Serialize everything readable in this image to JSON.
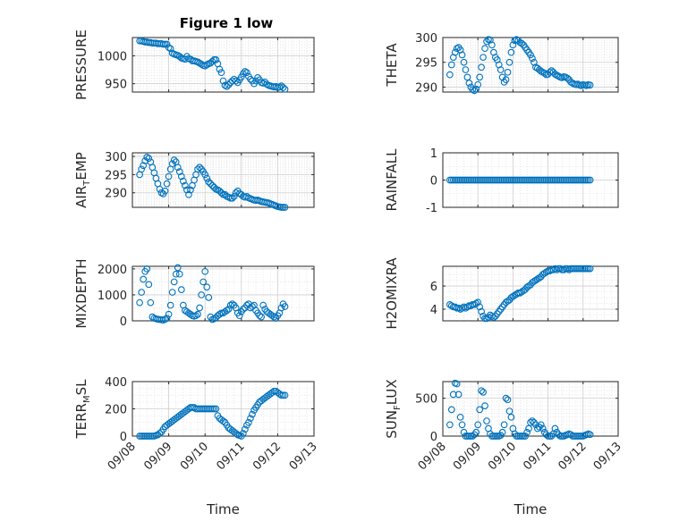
{
  "figure": {
    "title": "Figure 1 low",
    "marker_color": "#0072BD",
    "grid_color": "#d9d9d9",
    "xlabel": "Time",
    "x_tick_labels": [
      "09/08",
      "09/09",
      "09/10",
      "09/11",
      "09/12",
      "09/13"
    ]
  },
  "chart_data": [
    {
      "type": "scatter",
      "ylabel": "PRESSURE",
      "title": "Figure 1 low",
      "xlim": [
        0,
        5
      ],
      "ylim": [
        935,
        1033
      ],
      "yticks": [
        950,
        1000
      ],
      "grid": true,
      "x": [
        0.2,
        0.25,
        0.3,
        0.35,
        0.4,
        0.45,
        0.5,
        0.55,
        0.6,
        0.65,
        0.7,
        0.75,
        0.8,
        0.85,
        0.9,
        0.95,
        1.0,
        1.05,
        1.1,
        1.15,
        1.2,
        1.25,
        1.3,
        1.35,
        1.4,
        1.45,
        1.5,
        1.55,
        1.6,
        1.65,
        1.7,
        1.75,
        1.8,
        1.85,
        1.9,
        1.95,
        2.0,
        2.05,
        2.1,
        2.15,
        2.2,
        2.25,
        2.3,
        2.35,
        2.4,
        2.45,
        2.5,
        2.55,
        2.6,
        2.65,
        2.7,
        2.75,
        2.8,
        2.85,
        2.9,
        2.95,
        3.0,
        3.05,
        3.1,
        3.15,
        3.2,
        3.25,
        3.3,
        3.35,
        3.4,
        3.45,
        3.5,
        3.55,
        3.6,
        3.65,
        3.7,
        3.75,
        3.8,
        3.85,
        3.9,
        3.95,
        4.0,
        4.05,
        4.1,
        4.15,
        4.2
      ],
      "y": [
        1027,
        1027,
        1026,
        1025,
        1025,
        1024,
        1024,
        1023,
        1023,
        1023,
        1022,
        1022,
        1022,
        1021,
        1021,
        1021,
        1015,
        1013,
        1005,
        1003,
        1002,
        1001,
        999,
        996,
        995,
        994,
        999,
        995,
        994,
        991,
        991,
        990,
        989,
        987,
        985,
        983,
        982,
        984,
        986,
        987,
        990,
        993,
        993,
        986,
        976,
        970,
        955,
        947,
        945,
        948,
        952,
        955,
        958,
        955,
        952,
        957,
        962,
        968,
        972,
        970,
        963,
        958,
        955,
        950,
        955,
        961,
        957,
        952,
        951,
        953,
        949,
        947,
        946,
        945,
        944,
        945,
        943,
        944,
        946,
        943,
        940
      ]
    },
    {
      "type": "scatter",
      "ylabel": "THETA",
      "xlim": [
        0,
        5
      ],
      "ylim": [
        289,
        300
      ],
      "yticks": [
        290,
        295,
        300
      ],
      "grid": true,
      "x": [
        0.2,
        0.25,
        0.3,
        0.35,
        0.4,
        0.45,
        0.5,
        0.55,
        0.6,
        0.65,
        0.7,
        0.75,
        0.8,
        0.85,
        0.9,
        0.95,
        1.0,
        1.05,
        1.1,
        1.15,
        1.2,
        1.25,
        1.3,
        1.35,
        1.4,
        1.45,
        1.5,
        1.55,
        1.6,
        1.65,
        1.7,
        1.75,
        1.8,
        1.85,
        1.9,
        1.95,
        2.0,
        2.05,
        2.1,
        2.15,
        2.2,
        2.25,
        2.3,
        2.35,
        2.4,
        2.45,
        2.5,
        2.55,
        2.6,
        2.65,
        2.7,
        2.75,
        2.8,
        2.85,
        2.9,
        2.95,
        3.0,
        3.05,
        3.1,
        3.15,
        3.2,
        3.25,
        3.3,
        3.35,
        3.4,
        3.45,
        3.5,
        3.55,
        3.6,
        3.65,
        3.7,
        3.75,
        3.8,
        3.85,
        3.9,
        3.95,
        4.0,
        4.05,
        4.1,
        4.15,
        4.2
      ],
      "y": [
        292.5,
        294.5,
        296.0,
        297.0,
        297.8,
        298.0,
        297.5,
        296.5,
        295.0,
        293.5,
        292.0,
        290.8,
        290.0,
        289.5,
        289.3,
        289.6,
        290.5,
        292.0,
        294.0,
        296.0,
        297.8,
        299.2,
        299.6,
        299.5,
        298.5,
        297.0,
        296.0,
        295.5,
        294.5,
        293.5,
        292.0,
        291.0,
        291.5,
        293.0,
        295.0,
        297.0,
        298.5,
        299.4,
        299.6,
        299.4,
        299.0,
        298.8,
        298.5,
        298.0,
        297.5,
        297.0,
        296.5,
        295.8,
        295.0,
        294.0,
        293.8,
        293.5,
        293.2,
        293.0,
        292.8,
        292.5,
        292.6,
        293.0,
        293.3,
        293.0,
        292.6,
        292.4,
        292.2,
        292.0,
        291.9,
        292.1,
        292.0,
        291.8,
        291.5,
        291.0,
        290.8,
        290.6,
        290.5,
        290.6,
        290.4,
        290.3,
        290.5,
        290.4,
        290.3,
        290.5,
        290.4
      ]
    },
    {
      "type": "scatter",
      "ylabel": "AIR_TEMP",
      "xlim": [
        0,
        5
      ],
      "ylim": [
        286,
        301
      ],
      "yticks": [
        290,
        295,
        300
      ],
      "grid": true,
      "x": [
        0.2,
        0.25,
        0.3,
        0.35,
        0.4,
        0.45,
        0.5,
        0.55,
        0.6,
        0.65,
        0.7,
        0.75,
        0.8,
        0.85,
        0.9,
        0.95,
        1.0,
        1.05,
        1.1,
        1.15,
        1.2,
        1.25,
        1.3,
        1.35,
        1.4,
        1.45,
        1.5,
        1.55,
        1.6,
        1.65,
        1.7,
        1.75,
        1.8,
        1.85,
        1.9,
        1.95,
        2.0,
        2.05,
        2.1,
        2.15,
        2.2,
        2.25,
        2.3,
        2.35,
        2.4,
        2.45,
        2.5,
        2.55,
        2.6,
        2.65,
        2.7,
        2.75,
        2.8,
        2.85,
        2.9,
        2.95,
        3.0,
        3.05,
        3.1,
        3.15,
        3.2,
        3.25,
        3.3,
        3.35,
        3.4,
        3.45,
        3.5,
        3.55,
        3.6,
        3.65,
        3.7,
        3.75,
        3.8,
        3.85,
        3.9,
        3.95,
        4.0,
        4.05,
        4.1,
        4.15,
        4.2
      ],
      "y": [
        295.0,
        296.5,
        297.5,
        298.8,
        299.8,
        299.5,
        298.5,
        297.0,
        295.5,
        294.0,
        292.5,
        291.0,
        290.0,
        289.7,
        290.5,
        292.5,
        294.5,
        296.5,
        298.0,
        299.0,
        298.5,
        297.0,
        295.8,
        294.5,
        293.2,
        292.0,
        290.8,
        289.5,
        290.8,
        292.0,
        293.5,
        295.0,
        296.5,
        297.0,
        296.5,
        295.8,
        295.0,
        294.0,
        293.0,
        292.5,
        292.0,
        291.5,
        291.0,
        290.8,
        290.5,
        290.0,
        289.5,
        289.5,
        289.0,
        288.8,
        288.5,
        288.5,
        289.0,
        290.0,
        290.5,
        289.8,
        289.5,
        289.0,
        288.8,
        289.0,
        288.6,
        288.4,
        288.2,
        288.0,
        287.9,
        288.0,
        287.8,
        287.6,
        287.5,
        287.4,
        287.3,
        287.2,
        287.0,
        286.8,
        286.6,
        286.4,
        286.2,
        286.1,
        286.0,
        286.0,
        286.0
      ]
    },
    {
      "type": "scatter",
      "ylabel": "RAINFALL",
      "xlim": [
        0,
        5
      ],
      "ylim": [
        -1,
        1
      ],
      "yticks": [
        -1,
        0,
        1
      ],
      "grid": true,
      "x": [
        0.2,
        0.25,
        0.3,
        0.35,
        0.4,
        0.45,
        0.5,
        0.55,
        0.6,
        0.65,
        0.7,
        0.75,
        0.8,
        0.85,
        0.9,
        0.95,
        1.0,
        1.05,
        1.1,
        1.15,
        1.2,
        1.25,
        1.3,
        1.35,
        1.4,
        1.45,
        1.5,
        1.55,
        1.6,
        1.65,
        1.7,
        1.75,
        1.8,
        1.85,
        1.9,
        1.95,
        2.0,
        2.05,
        2.1,
        2.15,
        2.2,
        2.25,
        2.3,
        2.35,
        2.4,
        2.45,
        2.5,
        2.55,
        2.6,
        2.65,
        2.7,
        2.75,
        2.8,
        2.85,
        2.9,
        2.95,
        3.0,
        3.05,
        3.1,
        3.15,
        3.2,
        3.25,
        3.3,
        3.35,
        3.4,
        3.45,
        3.5,
        3.55,
        3.6,
        3.65,
        3.7,
        3.75,
        3.8,
        3.85,
        3.9,
        3.95,
        4.0,
        4.05,
        4.1,
        4.15,
        4.2
      ],
      "y": [
        0,
        0,
        0,
        0,
        0,
        0,
        0,
        0,
        0,
        0,
        0,
        0,
        0,
        0,
        0,
        0,
        0,
        0,
        0,
        0,
        0,
        0,
        0,
        0,
        0,
        0,
        0,
        0,
        0,
        0,
        0,
        0,
        0,
        0,
        0,
        0,
        0,
        0,
        0,
        0,
        0,
        0,
        0,
        0,
        0,
        0,
        0,
        0,
        0,
        0,
        0,
        0,
        0,
        0,
        0,
        0,
        0,
        0,
        0,
        0,
        0,
        0,
        0,
        0,
        0,
        0,
        0,
        0,
        0,
        0,
        0,
        0,
        0,
        0,
        0,
        0,
        0,
        0,
        0,
        0,
        0
      ]
    },
    {
      "type": "scatter",
      "ylabel": "MIXDEPTH",
      "xlim": [
        0,
        5
      ],
      "ylim": [
        0,
        2100
      ],
      "yticks": [
        0,
        1000,
        2000
      ],
      "grid": true,
      "x": [
        0.2,
        0.25,
        0.3,
        0.35,
        0.4,
        0.45,
        0.5,
        0.55,
        0.6,
        0.65,
        0.7,
        0.75,
        0.8,
        0.85,
        0.9,
        0.95,
        1.0,
        1.05,
        1.1,
        1.15,
        1.2,
        1.25,
        1.3,
        1.35,
        1.4,
        1.45,
        1.5,
        1.55,
        1.6,
        1.65,
        1.7,
        1.75,
        1.8,
        1.85,
        1.9,
        1.95,
        2.0,
        2.05,
        2.1,
        2.15,
        2.2,
        2.25,
        2.3,
        2.35,
        2.4,
        2.45,
        2.5,
        2.55,
        2.6,
        2.65,
        2.7,
        2.75,
        2.8,
        2.85,
        2.9,
        2.95,
        3.0,
        3.05,
        3.1,
        3.15,
        3.2,
        3.25,
        3.3,
        3.35,
        3.4,
        3.45,
        3.5,
        3.55,
        3.6,
        3.65,
        3.7,
        3.75,
        3.8,
        3.85,
        3.9,
        3.95,
        4.0,
        4.05,
        4.1,
        4.15,
        4.2
      ],
      "y": [
        700,
        1100,
        1600,
        1900,
        2000,
        1400,
        700,
        150,
        100,
        80,
        60,
        50,
        40,
        30,
        60,
        100,
        250,
        600,
        1100,
        1500,
        1800,
        2050,
        1800,
        1200,
        600,
        400,
        350,
        300,
        250,
        200,
        180,
        200,
        250,
        500,
        1000,
        1500,
        1900,
        1300,
        900,
        150,
        50,
        80,
        120,
        200,
        250,
        300,
        300,
        350,
        400,
        450,
        600,
        650,
        600,
        500,
        300,
        200,
        350,
        450,
        500,
        600,
        650,
        500,
        550,
        600,
        400,
        300,
        200,
        150,
        600,
        450,
        350,
        300,
        250,
        200,
        150,
        100,
        200,
        300,
        500,
        650,
        550
      ]
    },
    {
      "type": "scatter",
      "ylabel": "H2OMIXRA",
      "xlim": [
        0,
        5
      ],
      "ylim": [
        3,
        7.7
      ],
      "yticks": [
        4,
        6
      ],
      "grid": true,
      "x": [
        0.2,
        0.25,
        0.3,
        0.35,
        0.4,
        0.45,
        0.5,
        0.55,
        0.6,
        0.65,
        0.7,
        0.75,
        0.8,
        0.85,
        0.9,
        0.95,
        1.0,
        1.05,
        1.1,
        1.15,
        1.2,
        1.25,
        1.3,
        1.35,
        1.4,
        1.45,
        1.5,
        1.55,
        1.6,
        1.65,
        1.7,
        1.75,
        1.8,
        1.85,
        1.9,
        1.95,
        2.0,
        2.05,
        2.1,
        2.15,
        2.2,
        2.25,
        2.3,
        2.35,
        2.4,
        2.45,
        2.5,
        2.55,
        2.6,
        2.65,
        2.7,
        2.75,
        2.8,
        2.85,
        2.9,
        2.95,
        3.0,
        3.05,
        3.1,
        3.15,
        3.2,
        3.25,
        3.3,
        3.35,
        3.4,
        3.45,
        3.5,
        3.55,
        3.6,
        3.65,
        3.7,
        3.75,
        3.8,
        3.85,
        3.9,
        3.95,
        4.0,
        4.05,
        4.1,
        4.15,
        4.2
      ],
      "y": [
        4.4,
        4.3,
        4.2,
        4.2,
        4.1,
        4.1,
        4.0,
        4.1,
        4.2,
        4.1,
        4.2,
        4.3,
        4.3,
        4.4,
        4.4,
        4.5,
        4.6,
        4.2,
        3.8,
        3.4,
        3.2,
        3.2,
        3.3,
        3.5,
        3.4,
        3.3,
        3.4,
        3.6,
        3.8,
        4.0,
        4.2,
        4.4,
        4.6,
        4.7,
        4.8,
        5.0,
        5.1,
        5.2,
        5.3,
        5.4,
        5.4,
        5.5,
        5.6,
        5.7,
        5.9,
        6.0,
        6.1,
        6.3,
        6.4,
        6.5,
        6.6,
        6.7,
        6.8,
        7.0,
        7.1,
        7.2,
        7.3,
        7.3,
        7.4,
        7.4,
        7.5,
        7.4,
        7.5,
        7.5,
        7.4,
        7.4,
        7.5,
        7.5,
        7.4,
        7.5,
        7.5,
        7.5,
        7.5,
        7.5,
        7.5,
        7.5,
        7.5,
        7.5,
        7.5,
        7.5,
        7.5
      ]
    },
    {
      "type": "scatter",
      "ylabel": "TERR_MSL",
      "xlim": [
        0,
        5
      ],
      "ylim": [
        0,
        400
      ],
      "yticks": [
        0,
        200,
        400
      ],
      "grid": true,
      "x": [
        0.2,
        0.25,
        0.3,
        0.35,
        0.4,
        0.45,
        0.5,
        0.55,
        0.6,
        0.65,
        0.7,
        0.75,
        0.8,
        0.85,
        0.9,
        0.95,
        1.0,
        1.05,
        1.1,
        1.15,
        1.2,
        1.25,
        1.3,
        1.35,
        1.4,
        1.45,
        1.5,
        1.55,
        1.6,
        1.65,
        1.7,
        1.75,
        1.8,
        1.85,
        1.9,
        1.95,
        2.0,
        2.05,
        2.1,
        2.15,
        2.2,
        2.25,
        2.3,
        2.35,
        2.4,
        2.45,
        2.5,
        2.55,
        2.6,
        2.65,
        2.7,
        2.75,
        2.8,
        2.85,
        2.9,
        2.95,
        3.0,
        3.05,
        3.1,
        3.15,
        3.2,
        3.25,
        3.3,
        3.35,
        3.4,
        3.45,
        3.5,
        3.55,
        3.6,
        3.65,
        3.7,
        3.75,
        3.8,
        3.85,
        3.9,
        3.95,
        4.0,
        4.05,
        4.1,
        4.15,
        4.2
      ],
      "y": [
        0,
        0,
        0,
        0,
        0,
        0,
        0,
        0,
        0,
        5,
        10,
        20,
        30,
        50,
        70,
        80,
        90,
        100,
        110,
        120,
        130,
        140,
        150,
        160,
        170,
        180,
        190,
        200,
        210,
        210,
        210,
        200,
        200,
        200,
        200,
        200,
        200,
        200,
        200,
        200,
        200,
        200,
        200,
        150,
        130,
        120,
        110,
        100,
        80,
        60,
        50,
        40,
        30,
        20,
        10,
        5,
        0,
        20,
        50,
        80,
        100,
        130,
        160,
        190,
        210,
        230,
        250,
        260,
        270,
        280,
        290,
        300,
        310,
        320,
        330,
        330,
        320,
        310,
        300,
        300,
        300
      ]
    },
    {
      "type": "scatter",
      "ylabel": "SUN_FLUX",
      "xlim": [
        0,
        5
      ],
      "ylim": [
        0,
        720
      ],
      "yticks": [
        0,
        500
      ],
      "grid": true,
      "x": [
        0.2,
        0.25,
        0.3,
        0.35,
        0.4,
        0.45,
        0.5,
        0.55,
        0.6,
        0.65,
        0.7,
        0.75,
        0.8,
        0.85,
        0.9,
        0.95,
        1.0,
        1.05,
        1.1,
        1.15,
        1.2,
        1.25,
        1.3,
        1.35,
        1.4,
        1.45,
        1.5,
        1.55,
        1.6,
        1.65,
        1.7,
        1.75,
        1.8,
        1.85,
        1.9,
        1.95,
        2.0,
        2.05,
        2.1,
        2.15,
        2.2,
        2.25,
        2.3,
        2.35,
        2.4,
        2.45,
        2.5,
        2.55,
        2.6,
        2.65,
        2.7,
        2.75,
        2.8,
        2.85,
        2.9,
        2.95,
        3.0,
        3.05,
        3.1,
        3.15,
        3.2,
        3.25,
        3.3,
        3.35,
        3.4,
        3.45,
        3.5,
        3.55,
        3.6,
        3.65,
        3.7,
        3.75,
        3.8,
        3.85,
        3.9,
        3.95,
        4.0,
        4.05,
        4.1,
        4.15,
        4.2
      ],
      "y": [
        150,
        350,
        550,
        700,
        690,
        550,
        250,
        150,
        50,
        0,
        0,
        0,
        0,
        0,
        20,
        50,
        150,
        350,
        600,
        580,
        400,
        200,
        100,
        30,
        0,
        0,
        0,
        0,
        0,
        10,
        50,
        150,
        500,
        480,
        330,
        250,
        100,
        30,
        0,
        0,
        0,
        0,
        0,
        0,
        50,
        100,
        180,
        200,
        180,
        150,
        100,
        120,
        150,
        100,
        50,
        20,
        0,
        0,
        0,
        30,
        100,
        50,
        20,
        0,
        0,
        0,
        10,
        20,
        30,
        20,
        0,
        0,
        0,
        0,
        0,
        0,
        0,
        10,
        20,
        30,
        20
      ]
    }
  ]
}
